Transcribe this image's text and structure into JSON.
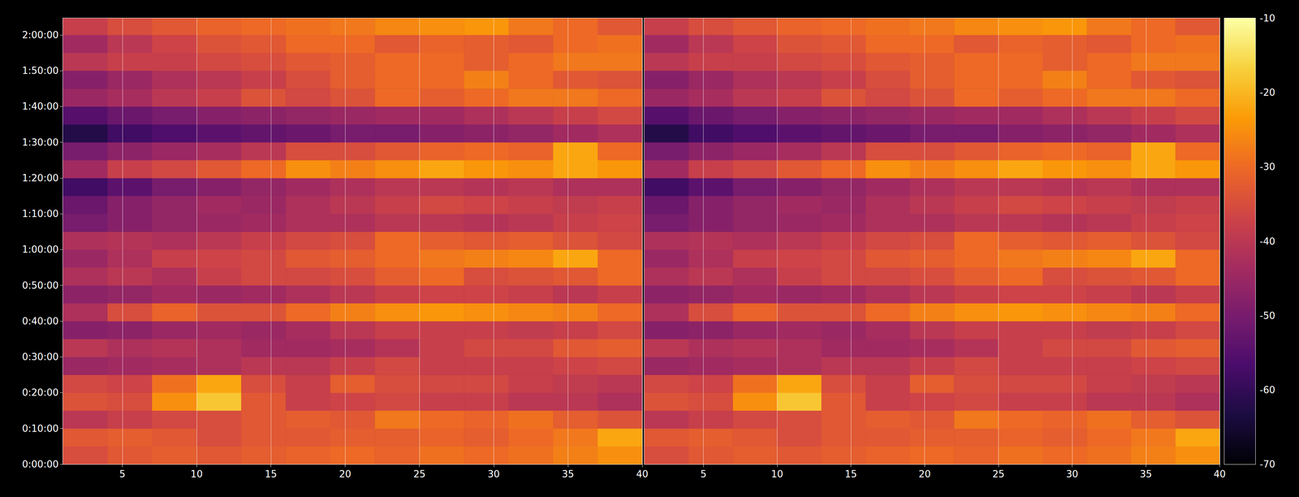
{
  "chart_data": [
    {
      "type": "heatmap",
      "x_edges": [
        1,
        4,
        7,
        10,
        13,
        16,
        19,
        22,
        25,
        28,
        31,
        34,
        37,
        40
      ],
      "y_edges": [
        0,
        300,
        600,
        900,
        1200,
        1500,
        1800,
        2100,
        2400,
        2700,
        3000,
        3300,
        3600,
        3900,
        4200,
        4500,
        4800,
        5100,
        5400,
        5700,
        6000,
        6300,
        6600,
        6900,
        7200,
        7500
      ],
      "cells": [
        [
          -35,
          -33,
          -32,
          -33,
          -32,
          -31,
          -30,
          -31,
          -29,
          -30,
          -29,
          -27,
          -25
        ],
        [
          -33,
          -32,
          -33,
          -35,
          -33,
          -33,
          -32,
          -32,
          -31,
          -32,
          -30,
          -28,
          -22
        ],
        [
          -40,
          -38,
          -36,
          -35,
          -33,
          -32,
          -33,
          -28,
          -30,
          -31,
          -29,
          -32,
          -34
        ],
        [
          -34,
          -35,
          -25,
          -18,
          -33,
          -38,
          -37,
          -36,
          -38,
          -38,
          -40,
          -40,
          -42
        ],
        [
          -36,
          -37,
          -29,
          -22,
          -35,
          -38,
          -32,
          -35,
          -36,
          -36,
          -38,
          -39,
          -40
        ],
        [
          -45,
          -44,
          -43,
          -42,
          -40,
          -40,
          -38,
          -36,
          -38,
          -38,
          -38,
          -37,
          -36
        ],
        [
          -40,
          -42,
          -41,
          -42,
          -44,
          -44,
          -43,
          -41,
          -38,
          -36,
          -36,
          -33,
          -32
        ],
        [
          -48,
          -47,
          -45,
          -44,
          -45,
          -43,
          -40,
          -38,
          -38,
          -38,
          -39,
          -38,
          -36
        ],
        [
          -42,
          -35,
          -31,
          -34,
          -34,
          -30,
          -27,
          -25,
          -24,
          -25,
          -26,
          -27,
          -30
        ],
        [
          -47,
          -46,
          -44,
          -45,
          -44,
          -42,
          -40,
          -38,
          -37,
          -37,
          -38,
          -40,
          -38
        ],
        [
          -42,
          -40,
          -42,
          -38,
          -36,
          -36,
          -35,
          -32,
          -30,
          -35,
          -34,
          -33,
          -30
        ],
        [
          -45,
          -42,
          -38,
          -37,
          -36,
          -33,
          -32,
          -30,
          -28,
          -27,
          -26,
          -22,
          -30
        ],
        [
          -42,
          -41,
          -42,
          -40,
          -38,
          -36,
          -35,
          -30,
          -32,
          -33,
          -32,
          -34,
          -36
        ],
        [
          -50,
          -48,
          -46,
          -45,
          -44,
          -42,
          -42,
          -40,
          -40,
          -41,
          -40,
          -38,
          -37
        ],
        [
          -52,
          -48,
          -46,
          -44,
          -45,
          -42,
          -40,
          -38,
          -36,
          -37,
          -38,
          -39,
          -38
        ],
        [
          -58,
          -54,
          -50,
          -48,
          -46,
          -44,
          -42,
          -40,
          -40,
          -41,
          -40,
          -42,
          -42
        ],
        [
          -44,
          -38,
          -36,
          -33,
          -30,
          -25,
          -27,
          -25,
          -22,
          -24,
          -25,
          -22,
          -24
        ],
        [
          -50,
          -47,
          -45,
          -43,
          -40,
          -35,
          -35,
          -33,
          -31,
          -30,
          -31,
          -22,
          -30
        ],
        [
          -62,
          -58,
          -56,
          -54,
          -53,
          -52,
          -50,
          -50,
          -48,
          -47,
          -46,
          -44,
          -42
        ],
        [
          -55,
          -52,
          -50,
          -48,
          -47,
          -46,
          -45,
          -44,
          -44,
          -42,
          -40,
          -38,
          -36
        ],
        [
          -45,
          -43,
          -40,
          -38,
          -34,
          -36,
          -34,
          -30,
          -32,
          -30,
          -28,
          -28,
          -30
        ],
        [
          -48,
          -45,
          -42,
          -40,
          -38,
          -35,
          -32,
          -30,
          -30,
          -27,
          -30,
          -33,
          -34
        ],
        [
          -40,
          -38,
          -38,
          -36,
          -35,
          -33,
          -32,
          -30,
          -30,
          -32,
          -30,
          -28,
          -28
        ],
        [
          -44,
          -40,
          -37,
          -34,
          -33,
          -30,
          -30,
          -33,
          -31,
          -32,
          -33,
          -30,
          -29
        ],
        [
          -38,
          -35,
          -33,
          -31,
          -30,
          -29,
          -28,
          -26,
          -25,
          -24,
          -28,
          -30,
          -33
        ]
      ],
      "xlim": [
        1,
        40
      ],
      "ylim": [
        0,
        7480
      ],
      "xticks": [
        5,
        10,
        15,
        20,
        25,
        30,
        35,
        40
      ],
      "yticks": [
        {
          "value": 0,
          "label": "0:00:00"
        },
        {
          "value": 600,
          "label": "0:10:00"
        },
        {
          "value": 1200,
          "label": "0:20:00"
        },
        {
          "value": 1800,
          "label": "0:30:00"
        },
        {
          "value": 2400,
          "label": "0:40:00"
        },
        {
          "value": 3000,
          "label": "0:50:00"
        },
        {
          "value": 3600,
          "label": "1:00:00"
        },
        {
          "value": 4200,
          "label": "1:10:00"
        },
        {
          "value": 4800,
          "label": "1:20:00"
        },
        {
          "value": 5400,
          "label": "1:30:00"
        },
        {
          "value": 6000,
          "label": "1:40:00"
        },
        {
          "value": 6600,
          "label": "1:50:00"
        },
        {
          "value": 7200,
          "label": "2:00:00"
        }
      ],
      "grid": true,
      "colorbar": {
        "range": [
          -70,
          -10
        ],
        "ticks": [
          -70,
          -60,
          -50,
          -40,
          -30,
          -20,
          -10
        ]
      }
    },
    {
      "type": "heatmap",
      "x_edges": [
        1,
        4,
        7,
        10,
        13,
        16,
        19,
        22,
        25,
        28,
        31,
        34,
        37,
        40
      ],
      "y_edges": [
        0,
        300,
        600,
        900,
        1200,
        1500,
        1800,
        2100,
        2400,
        2700,
        3000,
        3300,
        3600,
        3900,
        4200,
        4500,
        4800,
        5100,
        5400,
        5700,
        6000,
        6300,
        6600,
        6900,
        7200,
        7500
      ],
      "cells": [
        [
          -35,
          -33,
          -32,
          -33,
          -32,
          -31,
          -30,
          -31,
          -29,
          -30,
          -29,
          -27,
          -25
        ],
        [
          -33,
          -32,
          -33,
          -35,
          -33,
          -33,
          -32,
          -32,
          -31,
          -32,
          -30,
          -28,
          -22
        ],
        [
          -40,
          -38,
          -36,
          -35,
          -33,
          -32,
          -33,
          -28,
          -30,
          -31,
          -29,
          -32,
          -34
        ],
        [
          -34,
          -35,
          -25,
          -18,
          -33,
          -38,
          -37,
          -36,
          -38,
          -38,
          -40,
          -40,
          -42
        ],
        [
          -36,
          -37,
          -29,
          -22,
          -35,
          -38,
          -32,
          -35,
          -36,
          -36,
          -38,
          -39,
          -40
        ],
        [
          -45,
          -44,
          -43,
          -42,
          -40,
          -40,
          -38,
          -36,
          -38,
          -38,
          -38,
          -37,
          -36
        ],
        [
          -40,
          -42,
          -41,
          -42,
          -44,
          -44,
          -43,
          -41,
          -38,
          -36,
          -36,
          -33,
          -32
        ],
        [
          -48,
          -47,
          -45,
          -44,
          -45,
          -43,
          -40,
          -38,
          -38,
          -38,
          -39,
          -38,
          -36
        ],
        [
          -42,
          -35,
          -31,
          -34,
          -34,
          -30,
          -27,
          -25,
          -24,
          -25,
          -26,
          -27,
          -30
        ],
        [
          -47,
          -46,
          -44,
          -45,
          -44,
          -42,
          -40,
          -38,
          -37,
          -37,
          -38,
          -40,
          -38
        ],
        [
          -42,
          -40,
          -42,
          -38,
          -36,
          -36,
          -35,
          -32,
          -30,
          -35,
          -34,
          -33,
          -30
        ],
        [
          -45,
          -42,
          -38,
          -37,
          -36,
          -33,
          -32,
          -30,
          -28,
          -27,
          -26,
          -22,
          -30
        ],
        [
          -42,
          -41,
          -42,
          -40,
          -38,
          -36,
          -35,
          -30,
          -32,
          -33,
          -32,
          -34,
          -36
        ],
        [
          -50,
          -48,
          -46,
          -45,
          -44,
          -42,
          -42,
          -40,
          -40,
          -41,
          -40,
          -38,
          -37
        ],
        [
          -52,
          -48,
          -46,
          -44,
          -45,
          -42,
          -40,
          -38,
          -36,
          -37,
          -38,
          -39,
          -38
        ],
        [
          -58,
          -54,
          -50,
          -48,
          -46,
          -44,
          -42,
          -40,
          -40,
          -41,
          -40,
          -42,
          -42
        ],
        [
          -44,
          -38,
          -36,
          -33,
          -30,
          -25,
          -27,
          -25,
          -22,
          -24,
          -25,
          -22,
          -24
        ],
        [
          -50,
          -47,
          -45,
          -43,
          -40,
          -35,
          -35,
          -33,
          -31,
          -30,
          -31,
          -22,
          -30
        ],
        [
          -62,
          -58,
          -56,
          -54,
          -53,
          -52,
          -50,
          -50,
          -48,
          -47,
          -46,
          -44,
          -42
        ],
        [
          -55,
          -52,
          -50,
          -48,
          -47,
          -46,
          -45,
          -44,
          -44,
          -42,
          -40,
          -38,
          -36
        ],
        [
          -45,
          -43,
          -40,
          -38,
          -34,
          -36,
          -34,
          -30,
          -32,
          -30,
          -28,
          -28,
          -30
        ],
        [
          -48,
          -45,
          -42,
          -40,
          -38,
          -35,
          -32,
          -30,
          -30,
          -27,
          -30,
          -33,
          -34
        ],
        [
          -40,
          -38,
          -38,
          -36,
          -35,
          -33,
          -32,
          -30,
          -30,
          -32,
          -30,
          -28,
          -28
        ],
        [
          -44,
          -40,
          -37,
          -34,
          -33,
          -30,
          -30,
          -33,
          -31,
          -32,
          -33,
          -30,
          -29
        ],
        [
          -38,
          -35,
          -33,
          -31,
          -30,
          -29,
          -28,
          -26,
          -25,
          -24,
          -28,
          -30,
          -33
        ]
      ],
      "xlim": [
        1,
        40
      ],
      "ylim": [
        0,
        7480
      ],
      "xticks": [
        5,
        10,
        15,
        20,
        25,
        30,
        35,
        40
      ],
      "yticks": [
        {
          "value": 0,
          "label": "0:00:00"
        },
        {
          "value": 600,
          "label": "0:10:00"
        },
        {
          "value": 1200,
          "label": "0:20:00"
        },
        {
          "value": 1800,
          "label": "0:30:00"
        },
        {
          "value": 2400,
          "label": "0:40:00"
        },
        {
          "value": 3000,
          "label": "0:50:00"
        },
        {
          "value": 3600,
          "label": "1:00:00"
        },
        {
          "value": 4200,
          "label": "1:10:00"
        },
        {
          "value": 4800,
          "label": "1:20:00"
        },
        {
          "value": 5400,
          "label": "1:30:00"
        },
        {
          "value": 6000,
          "label": "1:40:00"
        },
        {
          "value": 6600,
          "label": "1:50:00"
        },
        {
          "value": 7200,
          "label": "2:00:00"
        }
      ],
      "tick_labels": "x",
      "grid": true,
      "colorbar": {
        "range": [
          -70,
          -10
        ],
        "ticks": [
          -70,
          -60,
          -50,
          -40,
          -30,
          -20,
          -10
        ]
      }
    }
  ]
}
